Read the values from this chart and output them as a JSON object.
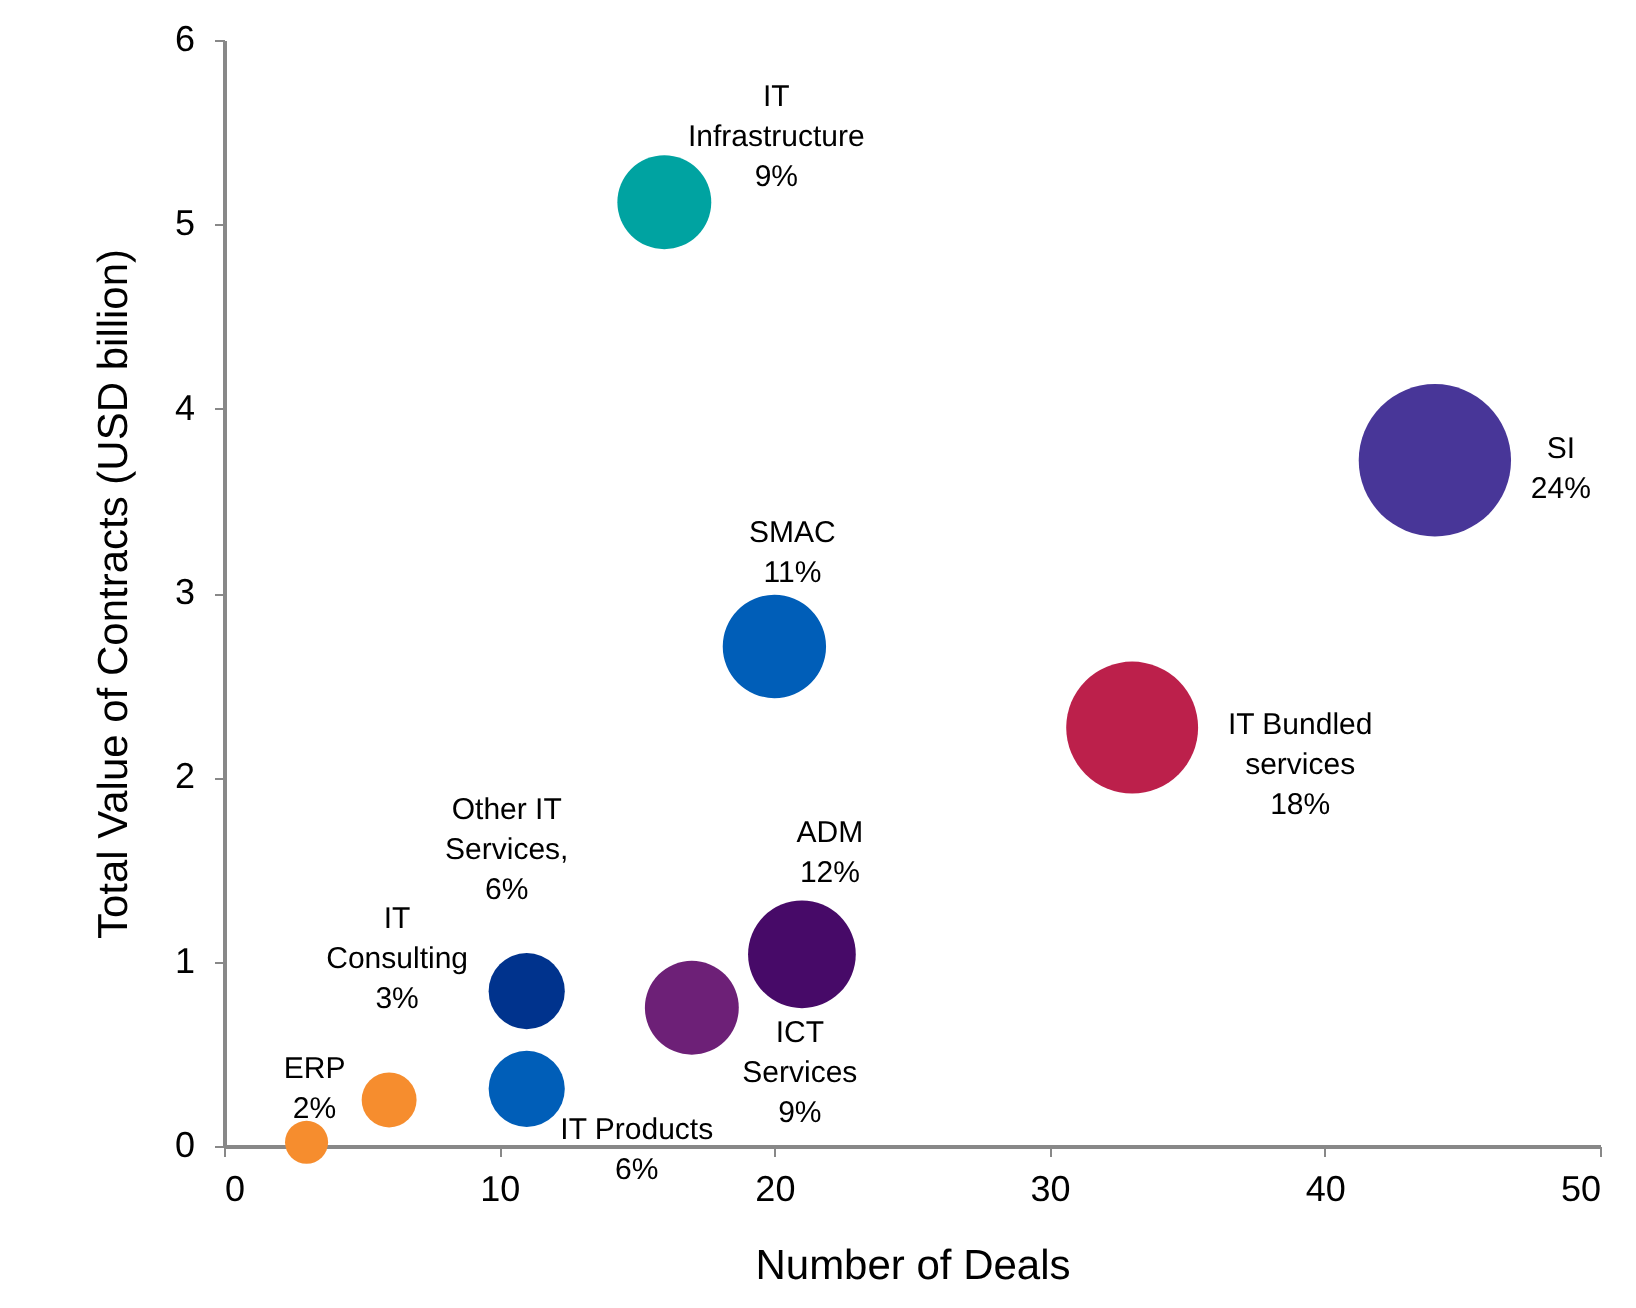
{
  "chart_data": {
    "type": "bubble",
    "xlabel": "Number of Deals",
    "ylabel": "Total Value of Contracts (USD billion)",
    "x": [
      16,
      44,
      20,
      33,
      21,
      17,
      11,
      6,
      11,
      3
    ],
    "values": [
      5.12,
      3.72,
      2.71,
      2.27,
      1.04,
      0.75,
      0.84,
      0.25,
      0.31,
      0.02
    ],
    "sizes": [
      0.38,
      1,
      0.46,
      0.75,
      0.5,
      0.38,
      0.25,
      0.13,
      0.25,
      0.08
    ],
    "colors": [
      "#00a3a1",
      "#483698",
      "#005eb8",
      "#bc204b",
      "#470a68",
      "#6d2077",
      "#00338d",
      "#f68d2e",
      "#005eb8",
      "#f68d2e"
    ],
    "annotations": [
      "IT\nInfrastructure\n9%",
      "SI\n24%",
      "SMAC\n11%",
      "IT Bundled\nservices\n18%",
      "ADM\n12%",
      "ICT\nServices\n9%",
      "Other IT\nServices,\n6%",
      "IT\nConsulting\n3%",
      "IT Products\n6%",
      "ERP\n2%"
    ],
    "xlim": [
      0,
      50
    ],
    "xticks": [
      0,
      10,
      20,
      30,
      40,
      50
    ],
    "ylim": [
      0,
      6
    ],
    "yticks": [
      0,
      1,
      2,
      3,
      4,
      5,
      6
    ],
    "grid": false
  }
}
